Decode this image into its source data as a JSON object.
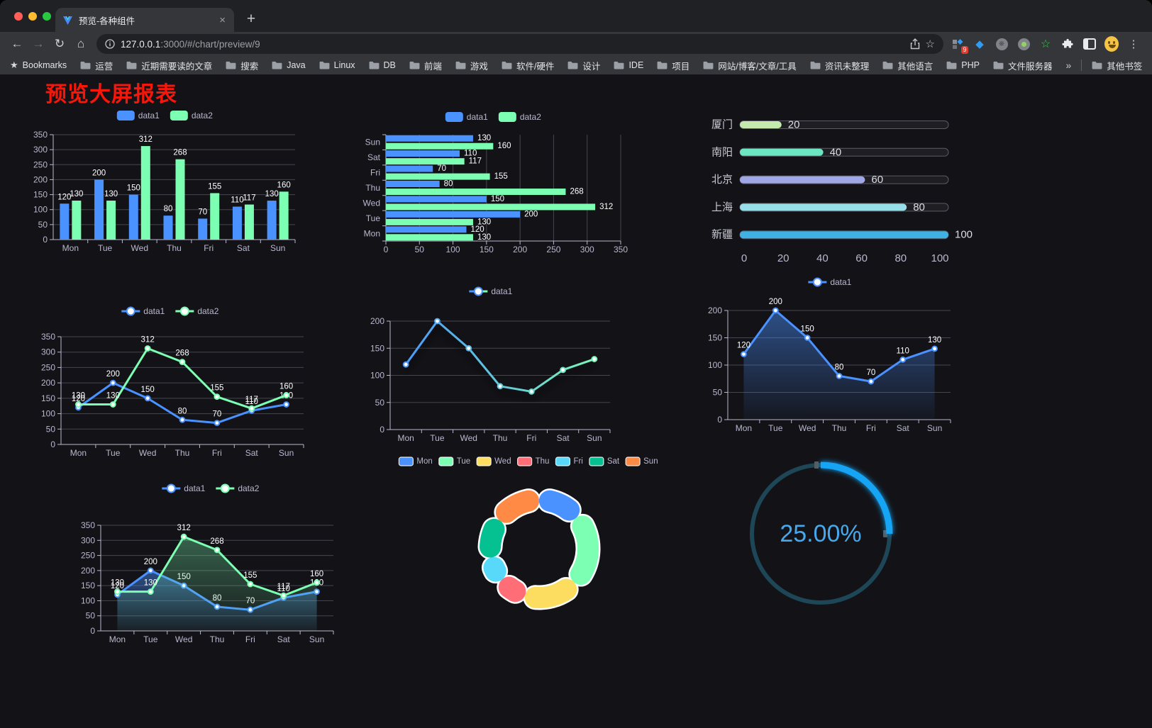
{
  "browser": {
    "tab": {
      "title": "预览-各种组件",
      "close_glyph": "×"
    },
    "new_tab_glyph": "+",
    "url": {
      "host": "127.0.0.1",
      "rest": ":3000/#/chart/preview/9"
    },
    "ext_badge": "9",
    "bookmarks_bar": {
      "root_label": "Bookmarks",
      "folders": [
        "运营",
        "近期需要读的文章",
        "搜索",
        "Java",
        "Linux",
        "DB",
        "前端",
        "游戏",
        "软件/硬件",
        "设计",
        "IDE",
        "项目",
        "网站/博客/文章/工具",
        "资讯未整理",
        "其他语言",
        "PHP",
        "文件服务器"
      ],
      "overflow_glyph": "»",
      "other_label": "其他书签"
    }
  },
  "page": {
    "title": "预览大屏报表"
  },
  "chart_data": [
    {
      "id": "bar",
      "type": "bar",
      "categories": [
        "Mon",
        "Tue",
        "Wed",
        "Thu",
        "Fri",
        "Sat",
        "Sun"
      ],
      "series": [
        {
          "name": "data1",
          "color": "#4992ff",
          "values": [
            120,
            200,
            150,
            80,
            70,
            110,
            130
          ]
        },
        {
          "name": "data2",
          "color": "#7cffb2",
          "values": [
            130,
            130,
            312,
            268,
            155,
            117,
            160
          ]
        }
      ],
      "ylim": [
        0,
        350
      ],
      "ystep": 50,
      "legend_position": "top",
      "grid": true,
      "bar_labels": true
    },
    {
      "id": "hbar",
      "type": "bar-horizontal",
      "categories": [
        "Mon",
        "Tue",
        "Wed",
        "Thu",
        "Fri",
        "Sat",
        "Sun"
      ],
      "series": [
        {
          "name": "data1",
          "color": "#4992ff",
          "values": [
            120,
            200,
            150,
            80,
            70,
            110,
            130
          ]
        },
        {
          "name": "data2",
          "color": "#7cffb2",
          "values": [
            130,
            130,
            312,
            268,
            155,
            117,
            160
          ]
        }
      ],
      "xlim": [
        0,
        350
      ],
      "xstep": 50,
      "legend_position": "top",
      "grid": true,
      "bar_labels": true
    },
    {
      "id": "progress",
      "type": "progress-bars",
      "max": 100,
      "xticks": [
        0,
        20,
        40,
        60,
        80,
        100
      ],
      "items": [
        {
          "label": "厦门",
          "value": 20,
          "color": "#c4ebad"
        },
        {
          "label": "南阳",
          "value": 40,
          "color": "#6be6c1"
        },
        {
          "label": "北京",
          "value": 60,
          "color": "#a0a7e6"
        },
        {
          "label": "上海",
          "value": 80,
          "color": "#96dee8"
        },
        {
          "label": "新疆",
          "value": 100,
          "color": "#3fb1e3"
        }
      ]
    },
    {
      "id": "line",
      "type": "line",
      "categories": [
        "Mon",
        "Tue",
        "Wed",
        "Thu",
        "Fri",
        "Sat",
        "Sun"
      ],
      "series": [
        {
          "name": "data1",
          "color": "#4992ff",
          "values": [
            120,
            200,
            150,
            80,
            70,
            110,
            130
          ]
        },
        {
          "name": "data2",
          "color": "#7cffb2",
          "values": [
            130,
            130,
            312,
            268,
            155,
            117,
            160
          ]
        }
      ],
      "ylim": [
        0,
        350
      ],
      "ystep": 50,
      "legend_position": "top",
      "point_labels": true
    },
    {
      "id": "gline",
      "type": "line-gradient",
      "categories": [
        "Mon",
        "Tue",
        "Wed",
        "Thu",
        "Fri",
        "Sat",
        "Sun"
      ],
      "series": [
        {
          "name": "data1",
          "gradient": [
            "#4992ff",
            "#7cffb2"
          ],
          "values": [
            120,
            200,
            150,
            80,
            70,
            110,
            130
          ]
        }
      ],
      "ylim": [
        0,
        200
      ],
      "ystep": 50,
      "legend_position": "top",
      "point_labels": false,
      "shadow": true
    },
    {
      "id": "area1",
      "type": "area",
      "categories": [
        "Mon",
        "Tue",
        "Wed",
        "Thu",
        "Fri",
        "Sat",
        "Sun"
      ],
      "series": [
        {
          "name": "data1",
          "color": "#4992ff",
          "values": [
            120,
            200,
            150,
            80,
            70,
            110,
            130
          ],
          "area": true
        }
      ],
      "ylim": [
        0,
        200
      ],
      "ystep": 50,
      "legend_position": "top",
      "point_labels": true
    },
    {
      "id": "area2",
      "type": "area",
      "categories": [
        "Mon",
        "Tue",
        "Wed",
        "Thu",
        "Fri",
        "Sat",
        "Sun"
      ],
      "series": [
        {
          "name": "data1",
          "color": "#4992ff",
          "values": [
            120,
            200,
            150,
            80,
            70,
            110,
            130
          ],
          "area": true
        },
        {
          "name": "data2",
          "color": "#7cffb2",
          "values": [
            130,
            130,
            312,
            268,
            155,
            117,
            160
          ],
          "area": true
        }
      ],
      "ylim": [
        0,
        350
      ],
      "ystep": 50,
      "legend_position": "top",
      "point_labels": true
    },
    {
      "id": "donut",
      "type": "pie",
      "labels": [
        "Mon",
        "Tue",
        "Wed",
        "Thu",
        "Fri",
        "Sat",
        "Sun"
      ],
      "values": [
        120,
        200,
        150,
        80,
        70,
        110,
        130
      ],
      "colors": [
        "#4992ff",
        "#7cffb2",
        "#fddd60",
        "#ff6e76",
        "#58d9f9",
        "#05c091",
        "#ff8a45"
      ],
      "legend_position": "top",
      "donut": true
    },
    {
      "id": "gauge",
      "type": "gauge",
      "value": 25,
      "max": 100,
      "display": "25.00%",
      "arc_color": "#17a4f4",
      "track_color": "#1d4656",
      "text_color": "#46a9ee"
    }
  ]
}
